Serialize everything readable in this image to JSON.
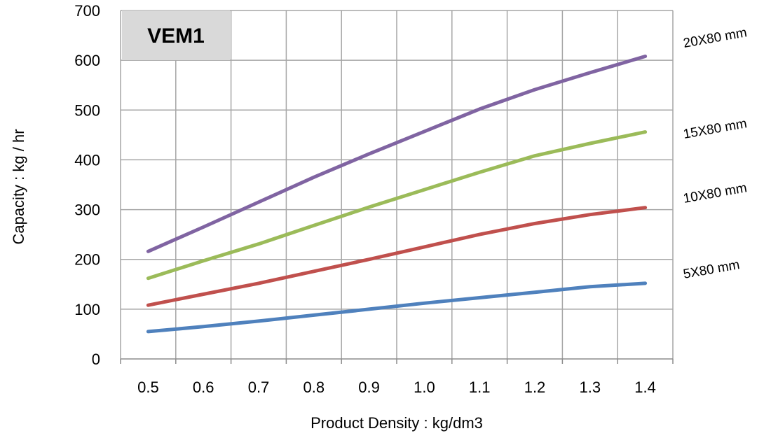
{
  "chart_data": {
    "type": "line",
    "badge": "VEM1",
    "xlabel": "Product Density : kg/dm3",
    "ylabel": "Capacity : kg / hr",
    "categories": [
      "0.5",
      "0.6",
      "0.7",
      "0.8",
      "0.9",
      "1.0",
      "1.1",
      "1.2",
      "1.3",
      "1.4"
    ],
    "x": [
      0.5,
      0.6,
      0.7,
      0.8,
      0.9,
      1.0,
      1.1,
      1.2,
      1.3,
      1.4
    ],
    "ylim": [
      0,
      700
    ],
    "yticks": [
      0,
      100,
      200,
      300,
      400,
      500,
      600,
      700
    ],
    "grid": true,
    "series": [
      {
        "name": "5X80 mm",
        "color": "#4f81bd",
        "values": [
          55,
          65,
          76,
          88,
          100,
          112,
          123,
          134,
          145,
          152
        ]
      },
      {
        "name": "10X80 mm",
        "color": "#c0504d",
        "values": [
          108,
          130,
          152,
          176,
          200,
          225,
          250,
          272,
          290,
          304
        ]
      },
      {
        "name": "15X80 mm",
        "color": "#9bbb59",
        "values": [
          162,
          197,
          231,
          268,
          305,
          340,
          375,
          408,
          433,
          456
        ]
      },
      {
        "name": "20X80 mm",
        "color": "#8064a2",
        "values": [
          216,
          265,
          315,
          365,
          412,
          457,
          502,
          541,
          575,
          608
        ]
      }
    ]
  }
}
